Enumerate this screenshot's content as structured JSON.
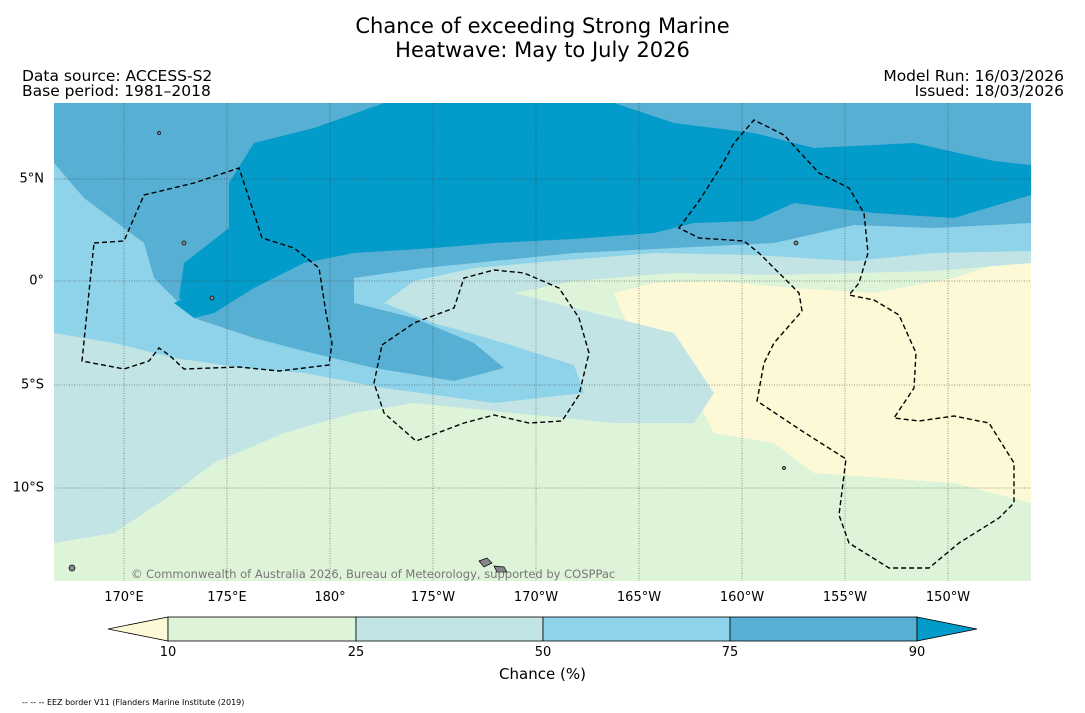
{
  "title": {
    "line1": "Chance of exceeding Strong Marine",
    "line2": "Heatwave: May to July 2026"
  },
  "meta": {
    "data_source": "Data source: ACCESS-S2",
    "base_period": "Base period: 1981–2018",
    "model_run": "Model Run: 16/03/2026",
    "issued": "Issued: 18/03/2026"
  },
  "map": {
    "copyright": "© Commonwealth of Australia 2026, Bureau of Meteorology, supported by COSPPac",
    "lon_labels": [
      "170°E",
      "175°E",
      "180°",
      "175°W",
      "170°W",
      "165°W",
      "160°W",
      "155°W",
      "150°W"
    ],
    "lat_labels": [
      "5°N",
      "0°",
      "5°S",
      "10°S"
    ]
  },
  "colorbar": {
    "label": "Chance (%)",
    "ticks": [
      "10",
      "25",
      "50",
      "75",
      "90"
    ],
    "colors": [
      "#fdf9d6",
      "#def4d9",
      "#c2e4e4",
      "#8ed3e9",
      "#58afd4",
      "#039bc9"
    ]
  },
  "footnote": "-- -- -- EEZ border V11 (Flanders Marine Institute (2019)"
}
